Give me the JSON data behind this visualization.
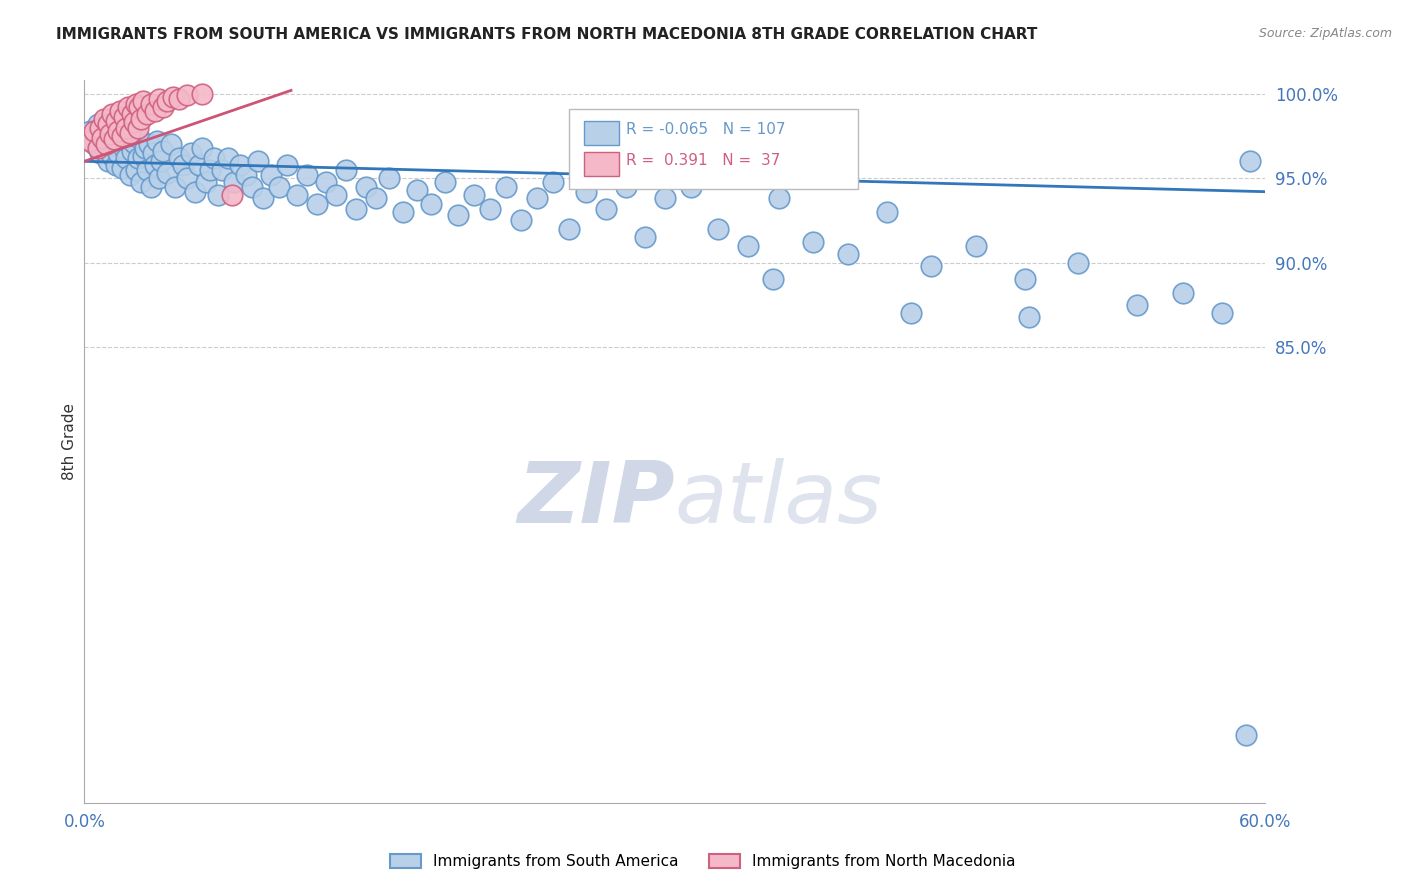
{
  "title": "IMMIGRANTS FROM SOUTH AMERICA VS IMMIGRANTS FROM NORTH MACEDONIA 8TH GRADE CORRELATION CHART",
  "source_text": "Source: ZipAtlas.com",
  "ylabel": "8th Grade",
  "x_min": 0.0,
  "x_max": 0.6,
  "y_min": 0.58,
  "y_max": 1.008,
  "y_ticks": [
    0.85,
    0.9,
    0.95,
    1.0
  ],
  "legend_blue_label": "Immigrants from South America",
  "legend_pink_label": "Immigrants from North Macedonia",
  "R_blue": -0.065,
  "N_blue": 107,
  "R_pink": 0.391,
  "N_pink": 37,
  "blue_color": "#b8d0e8",
  "blue_edge": "#6699cc",
  "pink_color": "#f4b8c8",
  "pink_edge": "#d06080",
  "blue_line_color": "#3377bb",
  "pink_line_color": "#cc5577",
  "watermark_color": "#d0d8e8",
  "blue_trend_x0": 0.0,
  "blue_trend_x1": 0.6,
  "blue_trend_y0": 0.96,
  "blue_trend_y1": 0.942,
  "pink_trend_x0": 0.0,
  "pink_trend_x1": 0.105,
  "pink_trend_y0": 0.96,
  "pink_trend_y1": 1.002,
  "blue_scatter_x": [
    0.003,
    0.005,
    0.007,
    0.008,
    0.009,
    0.01,
    0.011,
    0.012,
    0.013,
    0.014,
    0.015,
    0.016,
    0.017,
    0.018,
    0.019,
    0.02,
    0.021,
    0.022,
    0.023,
    0.024,
    0.025,
    0.026,
    0.027,
    0.028,
    0.029,
    0.03,
    0.031,
    0.032,
    0.033,
    0.034,
    0.035,
    0.036,
    0.037,
    0.038,
    0.039,
    0.04,
    0.042,
    0.044,
    0.046,
    0.048,
    0.05,
    0.052,
    0.054,
    0.056,
    0.058,
    0.06,
    0.062,
    0.064,
    0.066,
    0.068,
    0.07,
    0.073,
    0.076,
    0.079,
    0.082,
    0.085,
    0.088,
    0.091,
    0.095,
    0.099,
    0.103,
    0.108,
    0.113,
    0.118,
    0.123,
    0.128,
    0.133,
    0.138,
    0.143,
    0.148,
    0.155,
    0.162,
    0.169,
    0.176,
    0.183,
    0.19,
    0.198,
    0.206,
    0.214,
    0.222,
    0.23,
    0.238,
    0.246,
    0.255,
    0.265,
    0.275,
    0.285,
    0.295,
    0.308,
    0.322,
    0.337,
    0.353,
    0.37,
    0.388,
    0.408,
    0.43,
    0.453,
    0.478,
    0.505,
    0.535,
    0.558,
    0.578,
    0.592,
    0.35,
    0.42,
    0.48,
    0.59
  ],
  "blue_scatter_y": [
    0.978,
    0.97,
    0.982,
    0.965,
    0.975,
    0.968,
    0.972,
    0.96,
    0.974,
    0.963,
    0.97,
    0.958,
    0.965,
    0.973,
    0.956,
    0.968,
    0.962,
    0.975,
    0.952,
    0.966,
    0.971,
    0.955,
    0.962,
    0.974,
    0.948,
    0.963,
    0.968,
    0.955,
    0.97,
    0.945,
    0.965,
    0.958,
    0.972,
    0.95,
    0.96,
    0.966,
    0.953,
    0.97,
    0.945,
    0.962,
    0.958,
    0.95,
    0.965,
    0.942,
    0.958,
    0.968,
    0.948,
    0.955,
    0.962,
    0.94,
    0.955,
    0.962,
    0.948,
    0.958,
    0.952,
    0.945,
    0.96,
    0.938,
    0.952,
    0.945,
    0.958,
    0.94,
    0.952,
    0.935,
    0.948,
    0.94,
    0.955,
    0.932,
    0.945,
    0.938,
    0.95,
    0.93,
    0.943,
    0.935,
    0.948,
    0.928,
    0.94,
    0.932,
    0.945,
    0.925,
    0.938,
    0.948,
    0.92,
    0.942,
    0.932,
    0.945,
    0.915,
    0.938,
    0.945,
    0.92,
    0.91,
    0.938,
    0.912,
    0.905,
    0.93,
    0.898,
    0.91,
    0.89,
    0.9,
    0.875,
    0.882,
    0.87,
    0.96,
    0.89,
    0.87,
    0.868,
    0.62
  ],
  "pink_scatter_x": [
    0.003,
    0.005,
    0.007,
    0.008,
    0.009,
    0.01,
    0.011,
    0.012,
    0.013,
    0.014,
    0.015,
    0.016,
    0.017,
    0.018,
    0.019,
    0.02,
    0.021,
    0.022,
    0.023,
    0.024,
    0.025,
    0.026,
    0.027,
    0.028,
    0.029,
    0.03,
    0.032,
    0.034,
    0.036,
    0.038,
    0.04,
    0.042,
    0.045,
    0.048,
    0.052,
    0.06,
    0.075
  ],
  "pink_scatter_y": [
    0.972,
    0.978,
    0.968,
    0.98,
    0.974,
    0.985,
    0.97,
    0.982,
    0.976,
    0.988,
    0.973,
    0.984,
    0.978,
    0.99,
    0.975,
    0.986,
    0.98,
    0.992,
    0.977,
    0.988,
    0.983,
    0.994,
    0.98,
    0.992,
    0.985,
    0.996,
    0.988,
    0.994,
    0.99,
    0.997,
    0.992,
    0.996,
    0.998,
    0.997,
    0.999,
    1.0,
    0.94
  ]
}
